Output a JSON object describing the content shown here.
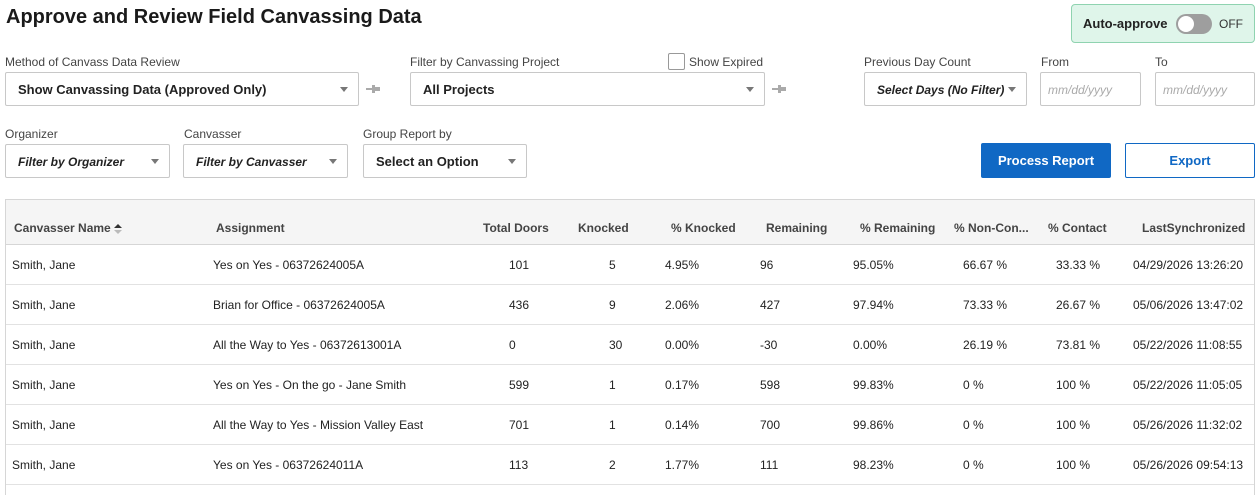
{
  "page": {
    "title": "Approve and Review Field Canvassing Data"
  },
  "auto_approve": {
    "label": "Auto-approve",
    "state": "OFF",
    "enabled": false
  },
  "filters": {
    "method": {
      "label": "Method of Canvass Data Review",
      "value": "Show Canvassing Data (Approved Only)"
    },
    "project": {
      "label": "Filter by Canvassing Project",
      "value": "All Projects"
    },
    "show_expired": {
      "label": "Show Expired",
      "checked": false
    },
    "previous_day_count": {
      "label": "Previous Day Count",
      "value": "Select Days (No Filter)"
    },
    "from": {
      "label": "From",
      "placeholder": "mm/dd/yyyy"
    },
    "to": {
      "label": "To",
      "placeholder": "mm/dd/yyyy"
    },
    "organizer": {
      "label": "Organizer",
      "value": "Filter by Organizer"
    },
    "canvasser": {
      "label": "Canvasser",
      "value": "Filter by Canvasser"
    },
    "group_by": {
      "label": "Group Report by",
      "value": "Select an Option"
    }
  },
  "actions": {
    "process": "Process Report",
    "export": "Export"
  },
  "table": {
    "columns": [
      "Canvasser Name",
      "Assignment",
      "Total Doors",
      "Knocked",
      "% Knocked",
      "Remaining",
      "% Remaining",
      "% Non-Con...",
      "% Contact",
      "LastSynchronized"
    ],
    "rows": [
      [
        "Smith, Jane",
        "Yes on Yes - 06372624005A",
        "101",
        "5",
        "4.95%",
        "96",
        "95.05%",
        "66.67 %",
        "33.33 %",
        "04/29/2026 13:26:20"
      ],
      [
        "Smith, Jane",
        "Brian for Office - 06372624005A",
        "436",
        "9",
        "2.06%",
        "427",
        "97.94%",
        "73.33 %",
        "26.67 %",
        "05/06/2026 13:47:02"
      ],
      [
        "Smith, Jane",
        "All the Way to Yes - 06372613001A",
        "0",
        "30",
        "0.00%",
        "-30",
        "0.00%",
        "26.19 %",
        "73.81 %",
        "05/22/2026 11:08:55"
      ],
      [
        "Smith, Jane",
        "Yes on Yes - On the go - Jane Smith",
        "599",
        "1",
        "0.17%",
        "598",
        "99.83%",
        "0 %",
        "100 %",
        "05/22/2026 11:05:05"
      ],
      [
        "Smith, Jane",
        "All the Way to Yes - Mission Valley East",
        "701",
        "1",
        "0.14%",
        "700",
        "99.86%",
        "0 %",
        "100 %",
        "05/26/2026 11:32:02"
      ],
      [
        "Smith, Jane",
        "Yes on Yes - 06372624011A",
        "113",
        "2",
        "1.77%",
        "111",
        "98.23%",
        "0 %",
        "100 %",
        "05/26/2026 09:54:13"
      ]
    ]
  },
  "colors": {
    "primary": "#1068c4",
    "auto_approve_bg": "#dff5ea",
    "toggle_off": "#9e9e9e"
  }
}
